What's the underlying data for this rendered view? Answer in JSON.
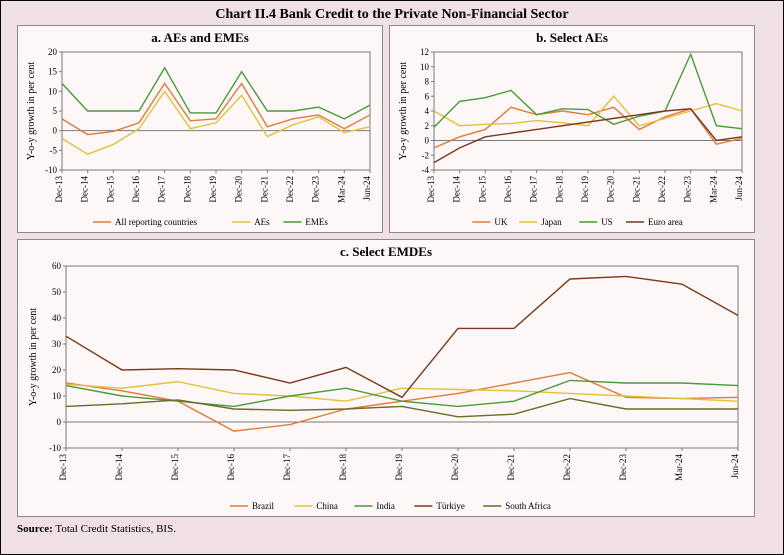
{
  "title": "Chart II.4 Bank Credit to the Private Non-Financial Sector",
  "source_label": "Source:",
  "source_text": "Total Credit Statistics, BIS.",
  "colors": {
    "axis": "#7a7a7a",
    "grid": "#c9bfc3",
    "plot_bg": "#fdf7f8"
  },
  "x_categories": [
    "Dec-13",
    "Dec-14",
    "Dec-15",
    "Dec-16",
    "Dec-17",
    "Dec-18",
    "Dec-19",
    "Dec-20",
    "Dec-21",
    "Dec-22",
    "Dec-23",
    "Mar-24",
    "Jun-24"
  ],
  "panel_a": {
    "title": "a. AEs and EMEs",
    "ylabel": "Y-o-y growth in per cent",
    "ylim": [
      -10,
      20
    ],
    "ytick_step": 5,
    "label_fontsize": 10,
    "tick_fontsize": 9,
    "line_width": 1.4,
    "series": [
      {
        "name": "All reporting countries",
        "color": "#e07b3a",
        "values": [
          3,
          -1,
          -0.2,
          2,
          12,
          2.5,
          3,
          12,
          1,
          3,
          4,
          0.5,
          4
        ]
      },
      {
        "name": "AEs",
        "color": "#e0c23a",
        "values": [
          -2,
          -6,
          -3.5,
          0.5,
          10,
          0.5,
          2,
          9,
          -1.5,
          1.5,
          3.5,
          -0.5,
          1
        ]
      },
      {
        "name": "EMEs",
        "color": "#4a9a3a",
        "values": [
          12,
          5,
          5,
          5,
          16,
          4.5,
          4.5,
          15,
          5,
          5,
          6,
          3,
          6.5
        ]
      }
    ]
  },
  "panel_b": {
    "title": "b. Select AEs",
    "ylabel": "Y-o-y growth in per cent",
    "ylim": [
      -4,
      12
    ],
    "ytick_step": 2,
    "label_fontsize": 10,
    "tick_fontsize": 9,
    "line_width": 1.4,
    "series": [
      {
        "name": "UK",
        "color": "#e07b3a",
        "values": [
          -1,
          0.5,
          1.5,
          4.5,
          3.5,
          4,
          3.5,
          4.5,
          1.5,
          3.2,
          4.3,
          -0.5,
          0.3
        ]
      },
      {
        "name": "Japan",
        "color": "#e0c23a",
        "values": [
          4,
          2,
          2.2,
          2.3,
          2.7,
          2.4,
          2,
          6,
          2,
          3,
          4,
          5,
          4
        ]
      },
      {
        "name": "US",
        "color": "#4a9a3a",
        "values": [
          1.8,
          5.3,
          5.8,
          6.8,
          3.5,
          4.3,
          4.2,
          2.2,
          3.3,
          4,
          11.7,
          2,
          1.6
        ]
      },
      {
        "name": "Euro area",
        "color": "#7a3a1a",
        "values": [
          -3,
          -1,
          0.5,
          1,
          1.5,
          2,
          2.5,
          3,
          3.5,
          4,
          4.3,
          0,
          0.5
        ]
      }
    ]
  },
  "panel_c": {
    "title": "c. Select EMDEs",
    "ylabel": "Y-o-y growth in per cent",
    "ylim": [
      -10,
      60
    ],
    "ytick_step": 10,
    "label_fontsize": 10,
    "tick_fontsize": 9,
    "line_width": 1.4,
    "series": [
      {
        "name": "Brazil",
        "color": "#e07b3a",
        "values": [
          15,
          12,
          8,
          -3.5,
          -1,
          5,
          8,
          11,
          15,
          19,
          9.5,
          9,
          9.5
        ]
      },
      {
        "name": "China",
        "color": "#e0c23a",
        "values": [
          14.5,
          13,
          15.5,
          11,
          10,
          8,
          13,
          12.5,
          12,
          11,
          10,
          9,
          8
        ]
      },
      {
        "name": "India",
        "color": "#4a9a3a",
        "values": [
          14,
          10,
          8,
          6,
          10,
          13,
          8,
          6,
          8,
          16,
          15,
          15,
          14
        ]
      },
      {
        "name": "Türkiye",
        "color": "#7a3a1a",
        "values": [
          33,
          20,
          20.5,
          20,
          15,
          21,
          9.5,
          36,
          36,
          55,
          56,
          53,
          41
        ]
      },
      {
        "name": "South Africa",
        "color": "#6b6b2a",
        "values": [
          6,
          7,
          8.5,
          5,
          4.5,
          5,
          6,
          2,
          3,
          9,
          5,
          5,
          5
        ]
      }
    ]
  }
}
